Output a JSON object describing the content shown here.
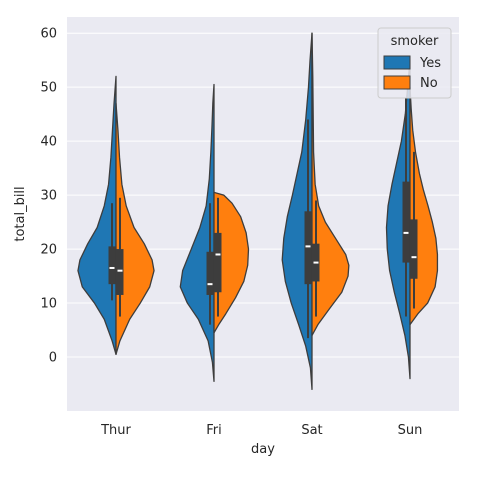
{
  "chart_data": {
    "type": "violin",
    "split": true,
    "xlabel": "day",
    "ylabel": "total_bill",
    "categories": [
      "Thur",
      "Fri",
      "Sat",
      "Sun"
    ],
    "ylim": [
      -10,
      63
    ],
    "yticks": [
      0,
      10,
      20,
      30,
      40,
      50,
      60
    ],
    "grid": true,
    "legend": {
      "title": "smoker",
      "placement": "top-right",
      "entries": [
        {
          "name": "Yes",
          "color": "#1f77b4"
        },
        {
          "name": "No",
          "color": "#ff7f0e"
        }
      ]
    },
    "series": [
      {
        "name": "Yes",
        "color": "#1f77b4",
        "side": "left",
        "violins": [
          {
            "category": "Thur",
            "range": [
              0.5,
              52
            ],
            "q1": 13.5,
            "median": 16.5,
            "q3": 20.5,
            "whisker": [
              10.5,
              28.5
            ],
            "profile": [
              [
                0.5,
                0.0
              ],
              [
                3,
                0.1
              ],
              [
                7,
                0.3
              ],
              [
                10,
                0.55
              ],
              [
                13,
                0.86
              ],
              [
                16,
                0.97
              ],
              [
                18,
                0.92
              ],
              [
                21,
                0.72
              ],
              [
                24,
                0.48
              ],
              [
                28,
                0.3
              ],
              [
                32,
                0.19
              ],
              [
                37,
                0.13
              ],
              [
                42,
                0.09
              ],
              [
                47,
                0.05
              ],
              [
                52,
                0.0
              ]
            ]
          },
          {
            "category": "Fri",
            "range": [
              -4.5,
              50.5
            ],
            "q1": 11.5,
            "median": 13.5,
            "q3": 19.5,
            "whisker": [
              6,
              28.5
            ],
            "profile": [
              [
                -4.5,
                0.0
              ],
              [
                -1,
                0.04
              ],
              [
                3,
                0.15
              ],
              [
                7,
                0.4
              ],
              [
                10,
                0.68
              ],
              [
                13,
                0.86
              ],
              [
                16,
                0.8
              ],
              [
                20,
                0.58
              ],
              [
                24,
                0.36
              ],
              [
                28,
                0.2
              ],
              [
                33,
                0.12
              ],
              [
                38,
                0.08
              ],
              [
                43,
                0.05
              ],
              [
                47,
                0.03
              ],
              [
                50.5,
                0.0
              ]
            ]
          },
          {
            "category": "Sat",
            "range": [
              -6,
              60
            ],
            "q1": 13.5,
            "median": 20.5,
            "q3": 27,
            "whisker": [
              3.5,
              44
            ],
            "profile": [
              [
                -6,
                0.0
              ],
              [
                -2,
                0.04
              ],
              [
                2,
                0.16
              ],
              [
                6,
                0.34
              ],
              [
                10,
                0.53
              ],
              [
                14,
                0.68
              ],
              [
                18,
                0.76
              ],
              [
                22,
                0.72
              ],
              [
                26,
                0.63
              ],
              [
                30,
                0.5
              ],
              [
                34,
                0.38
              ],
              [
                38,
                0.26
              ],
              [
                44,
                0.16
              ],
              [
                50,
                0.09
              ],
              [
                55,
                0.05
              ],
              [
                60,
                0.0
              ]
            ]
          },
          {
            "category": "Sun",
            "range": [
              -4,
              55
            ],
            "q1": 17.5,
            "median": 23,
            "q3": 32.5,
            "whisker": [
              7.5,
              48
            ],
            "profile": [
              [
                -4,
                0.0
              ],
              [
                0,
                0.04
              ],
              [
                4,
                0.13
              ],
              [
                8,
                0.26
              ],
              [
                12,
                0.4
              ],
              [
                16,
                0.52
              ],
              [
                20,
                0.58
              ],
              [
                24,
                0.6
              ],
              [
                28,
                0.56
              ],
              [
                32,
                0.46
              ],
              [
                36,
                0.34
              ],
              [
                40,
                0.22
              ],
              [
                45,
                0.12
              ],
              [
                50,
                0.06
              ],
              [
                55,
                0.0
              ]
            ]
          }
        ]
      },
      {
        "name": "No",
        "color": "#ff7f0e",
        "side": "right",
        "violins": [
          {
            "category": "Thur",
            "range": [
              0.5,
              47
            ],
            "q1": 11.5,
            "median": 16,
            "q3": 20,
            "whisker": [
              7.5,
              29.5
            ],
            "profile": [
              [
                0.5,
                0.0
              ],
              [
                3,
                0.1
              ],
              [
                7,
                0.35
              ],
              [
                10,
                0.62
              ],
              [
                13,
                0.86
              ],
              [
                16,
                0.97
              ],
              [
                18,
                0.92
              ],
              [
                21,
                0.72
              ],
              [
                24,
                0.46
              ],
              [
                28,
                0.26
              ],
              [
                32,
                0.15
              ],
              [
                37,
                0.09
              ],
              [
                42,
                0.05
              ],
              [
                47,
                0.0
              ]
            ]
          },
          {
            "category": "Fri",
            "range": [
              4.5,
              30.5
            ],
            "q1": 12,
            "median": 19,
            "q3": 23,
            "whisker": [
              7.5,
              29.5
            ],
            "profile": [
              [
                4.5,
                0.0
              ],
              [
                6,
                0.12
              ],
              [
                8,
                0.3
              ],
              [
                11,
                0.55
              ],
              [
                14,
                0.76
              ],
              [
                17,
                0.86
              ],
              [
                20,
                0.88
              ],
              [
                23,
                0.82
              ],
              [
                26,
                0.68
              ],
              [
                28.5,
                0.46
              ],
              [
                30,
                0.25
              ],
              [
                30.5,
                0.0
              ]
            ]
          },
          {
            "category": "Sat",
            "range": [
              4,
              60
            ],
            "q1": 14,
            "median": 17.5,
            "q3": 21,
            "whisker": [
              7.5,
              29
            ],
            "profile": [
              [
                4,
                0.0
              ],
              [
                6,
                0.15
              ],
              [
                9,
                0.45
              ],
              [
                12,
                0.76
              ],
              [
                15,
                0.92
              ],
              [
                17,
                0.94
              ],
              [
                19,
                0.86
              ],
              [
                22,
                0.6
              ],
              [
                25,
                0.34
              ],
              [
                28,
                0.17
              ],
              [
                32,
                0.08
              ],
              [
                38,
                0.04
              ],
              [
                45,
                0.03
              ],
              [
                52,
                0.02
              ],
              [
                56,
                0.01
              ],
              [
                60,
                0.0
              ]
            ]
          },
          {
            "category": "Sun",
            "range": [
              6,
              50
            ],
            "q1": 14.5,
            "median": 18.5,
            "q3": 25.5,
            "whisker": [
              9,
              38
            ],
            "profile": [
              [
                6,
                0.0
              ],
              [
                8,
                0.2
              ],
              [
                10,
                0.45
              ],
              [
                13,
                0.64
              ],
              [
                16,
                0.7
              ],
              [
                19,
                0.7
              ],
              [
                22,
                0.66
              ],
              [
                25,
                0.57
              ],
              [
                28,
                0.46
              ],
              [
                31,
                0.34
              ],
              [
                34,
                0.24
              ],
              [
                38,
                0.14
              ],
              [
                42,
                0.07
              ],
              [
                46,
                0.03
              ],
              [
                50,
                0.0
              ]
            ]
          }
        ]
      }
    ]
  }
}
